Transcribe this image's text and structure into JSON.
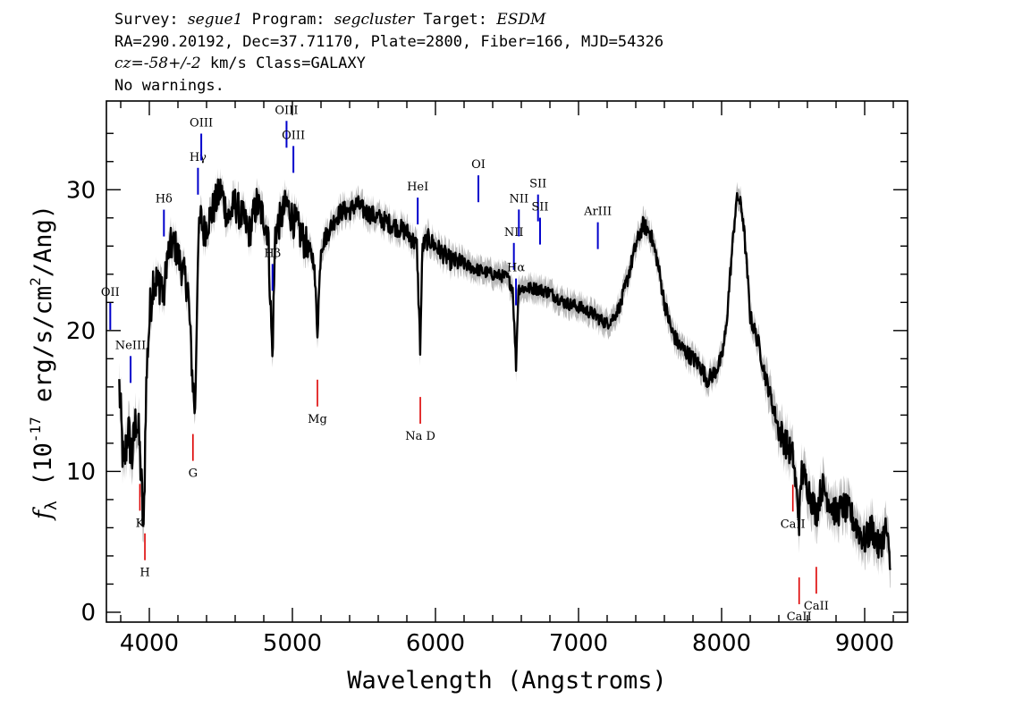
{
  "header": {
    "survey_label": "Survey:",
    "survey": "segue1",
    "program_label": "Program:",
    "program": "segcluster",
    "target_label": "Target:",
    "target": "ESDM",
    "line2": "RA=290.20192, Dec=37.71170, Plate=2800, Fiber=166, MJD=54326",
    "cz_label": "cz=",
    "cz_value": "-58+/-2",
    "cz_rest": " km/s Class=GALAXY",
    "line4": "No warnings."
  },
  "chart_data": {
    "type": "line",
    "xlabel": "Wavelength (Angstroms)",
    "ylabel_prefix": "f",
    "ylabel_sub": "λ",
    "ylabel_main": " (10",
    "ylabel_exp": "-17",
    "ylabel_units": " erg/s/cm",
    "ylabel_exp2": "2",
    "ylabel_end": "/Ang)",
    "xlim": [
      3700,
      9300
    ],
    "ylim": [
      -0.7,
      36.3
    ],
    "x_ticks": [
      4000,
      5000,
      6000,
      7000,
      8000,
      9000
    ],
    "x_ticklabels": [
      "4000",
      "5000",
      "6000",
      "7000",
      "8000",
      "9000"
    ],
    "y_ticks": [
      0,
      10,
      20,
      30
    ],
    "y_ticklabels": [
      "0",
      "10",
      "20",
      "30"
    ],
    "colors": {
      "flux": "#000000",
      "error": "#b8b8b8",
      "emission": "#0000cc",
      "absorption": "#dd0000"
    },
    "series": [
      {
        "x": [
          3790,
          3820,
          3850,
          3880,
          3910,
          3930,
          3950,
          3960,
          3975,
          3990,
          4010,
          4030,
          4060,
          4080,
          4100,
          4120,
          4150,
          4180,
          4210,
          4240,
          4270,
          4300,
          4320,
          4340,
          4360,
          4380,
          4420,
          4460,
          4500,
          4550,
          4600,
          4650,
          4700,
          4750,
          4800,
          4830,
          4860,
          4880,
          4920,
          4960,
          5000,
          5050,
          5100,
          5150,
          5175,
          5200,
          5250,
          5300,
          5350,
          5400,
          5450,
          5500,
          5600,
          5700,
          5800,
          5870,
          5893,
          5910,
          5950,
          6000,
          6050,
          6100,
          6200,
          6300,
          6400,
          6500,
          6540,
          6563,
          6580,
          6620,
          6700,
          6800,
          6900,
          7000,
          7100,
          7150,
          7200,
          7250,
          7300,
          7350,
          7400,
          7450,
          7500,
          7550,
          7600,
          7650,
          7700,
          7750,
          7800,
          7850,
          7900,
          7950,
          8000,
          8030,
          8060,
          8100,
          8120,
          8150,
          8180,
          8200,
          8230,
          8260,
          8300,
          8350,
          8400,
          8450,
          8500,
          8542,
          8560,
          8600,
          8662,
          8700,
          8750,
          8800,
          8850,
          8900,
          8950,
          9000,
          9050,
          9100,
          9150,
          9180
        ],
        "y": [
          16,
          10,
          13,
          11,
          14,
          12,
          8,
          5,
          15,
          19,
          22,
          24,
          23,
          24,
          22,
          25,
          26,
          26,
          25,
          24,
          23,
          17,
          14,
          26,
          28,
          27,
          28,
          29,
          30,
          28,
          29,
          28,
          27,
          29,
          28,
          27,
          18,
          27,
          28,
          29,
          28,
          27,
          26,
          25,
          20,
          26,
          27,
          28,
          28.5,
          28.5,
          29,
          28.5,
          28,
          27.5,
          27,
          26,
          18.8,
          26,
          26.5,
          26,
          25.5,
          25,
          24.7,
          24.3,
          24,
          23.8,
          23,
          17.5,
          23,
          23,
          23,
          22.7,
          22,
          21.7,
          21.2,
          20.8,
          20.5,
          21,
          22,
          24,
          26,
          27.5,
          27,
          25,
          22,
          20,
          19,
          18.5,
          18,
          17.5,
          16.5,
          17,
          18,
          20,
          24,
          29,
          29.5,
          28,
          24,
          21,
          20,
          19,
          17,
          15,
          13,
          12,
          11,
          6.5,
          10,
          9,
          7,
          9,
          8,
          7,
          7.5,
          7,
          6,
          5,
          6,
          4.5,
          6,
          3
        ]
      }
    ],
    "emission_lines": [
      {
        "label": "OII",
        "wave": 3727
      },
      {
        "label": "NeIII",
        "wave": 3869
      },
      {
        "label": "Hδ",
        "wave": 4102
      },
      {
        "label": "Hγ",
        "wave": 4340
      },
      {
        "label": "OIII",
        "wave": 4363
      },
      {
        "label": "Hβ",
        "wave": 4861
      },
      {
        "label": "OIII",
        "wave": 4959
      },
      {
        "label": "OIII",
        "wave": 5007
      },
      {
        "label": "HeI",
        "wave": 5876
      },
      {
        "label": "OI",
        "wave": 6300
      },
      {
        "label": "NII",
        "wave": 6548
      },
      {
        "label": "Hα",
        "wave": 6563
      },
      {
        "label": "NII",
        "wave": 6583
      },
      {
        "label": "SII",
        "wave": 6717
      },
      {
        "label": "SII",
        "wave": 6731
      },
      {
        "label": "ArIII",
        "wave": 7135
      }
    ],
    "absorption_lines": [
      {
        "label": "K",
        "wave": 3934
      },
      {
        "label": "H",
        "wave": 3969
      },
      {
        "label": "G",
        "wave": 4305
      },
      {
        "label": "Mg",
        "wave": 5175
      },
      {
        "label": "Na D",
        "wave": 5894
      },
      {
        "label": "CaII",
        "wave": 8498
      },
      {
        "label": "CaII",
        "wave": 8542
      },
      {
        "label": "CaII",
        "wave": 8662
      }
    ]
  }
}
